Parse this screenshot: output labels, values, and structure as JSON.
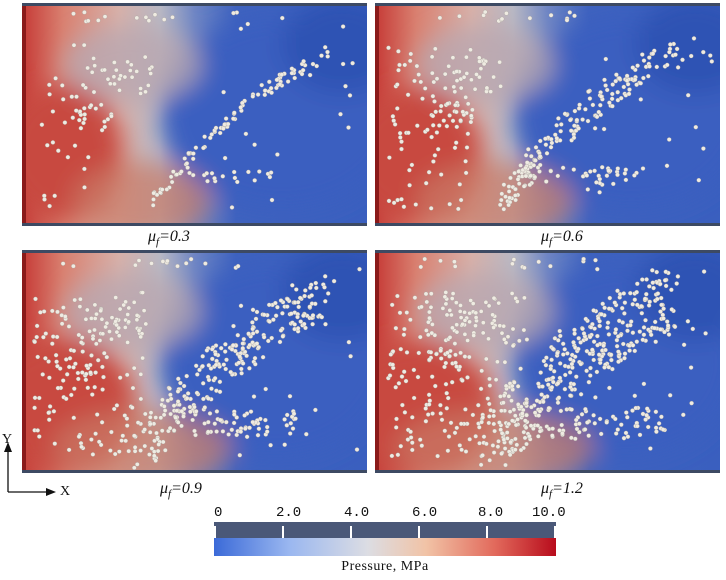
{
  "panels": [
    {
      "mu_symbol": "μ",
      "mu_subscript": "f",
      "mu_value": "=0.3",
      "front": 0.0
    },
    {
      "mu_symbol": "μ",
      "mu_subscript": "f",
      "mu_value": "=0.6",
      "front": 0.33
    },
    {
      "mu_symbol": "μ",
      "mu_subscript": "f",
      "mu_value": "=0.9",
      "front": 0.66
    },
    {
      "mu_symbol": "μ",
      "mu_subscript": "f",
      "mu_value": "=1.2",
      "front": 1.0
    }
  ],
  "axes": {
    "y_label": "Y",
    "x_label": "X"
  },
  "colorbar": {
    "title": "Pressure, MPa",
    "ticks": [
      "0",
      "2.0",
      "4.0",
      "6.0",
      "8.0",
      "10.0"
    ],
    "range": [
      0,
      10
    ],
    "colors": {
      "low": "#3a5fc4",
      "mid": "#d9d9dc",
      "high": "#c01a22"
    }
  },
  "colors": {
    "frame": "#3d4a63",
    "particle": "#eeeae0",
    "low_pressure": "#3a60c0",
    "high_pressure": "#c93a3a"
  }
}
